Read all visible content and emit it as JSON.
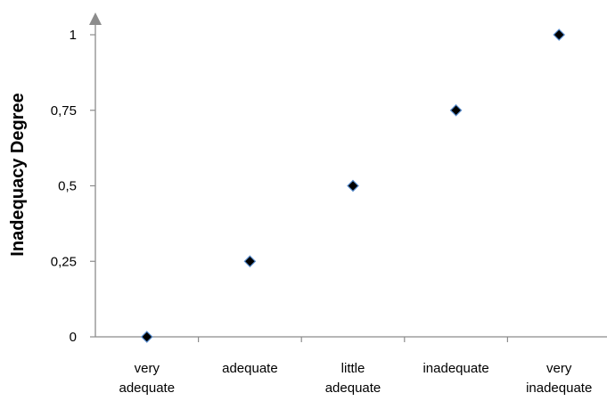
{
  "chart_data": {
    "type": "scatter",
    "title": "",
    "xlabel": "",
    "ylabel": "Inadequacy Degree",
    "categories": [
      [
        "very",
        "adequate"
      ],
      [
        "adequate"
      ],
      [
        "little",
        "adequate"
      ],
      [
        "inadequate"
      ],
      [
        "very",
        "inadequate"
      ]
    ],
    "series": [
      {
        "values": [
          0,
          0.25,
          0.5,
          0.75,
          1
        ]
      }
    ],
    "ylim": [
      0,
      1
    ],
    "yticks": [
      0,
      0.25,
      0.5,
      0.75,
      1
    ],
    "ytick_labels": [
      "0",
      "0,25",
      "0,5",
      "0,75",
      "1"
    ],
    "grid": false,
    "legend": "none",
    "colors": {
      "marker_fill": "#000000",
      "marker_edge": "#5b8fd0",
      "axis": "#8c8c8c"
    }
  }
}
